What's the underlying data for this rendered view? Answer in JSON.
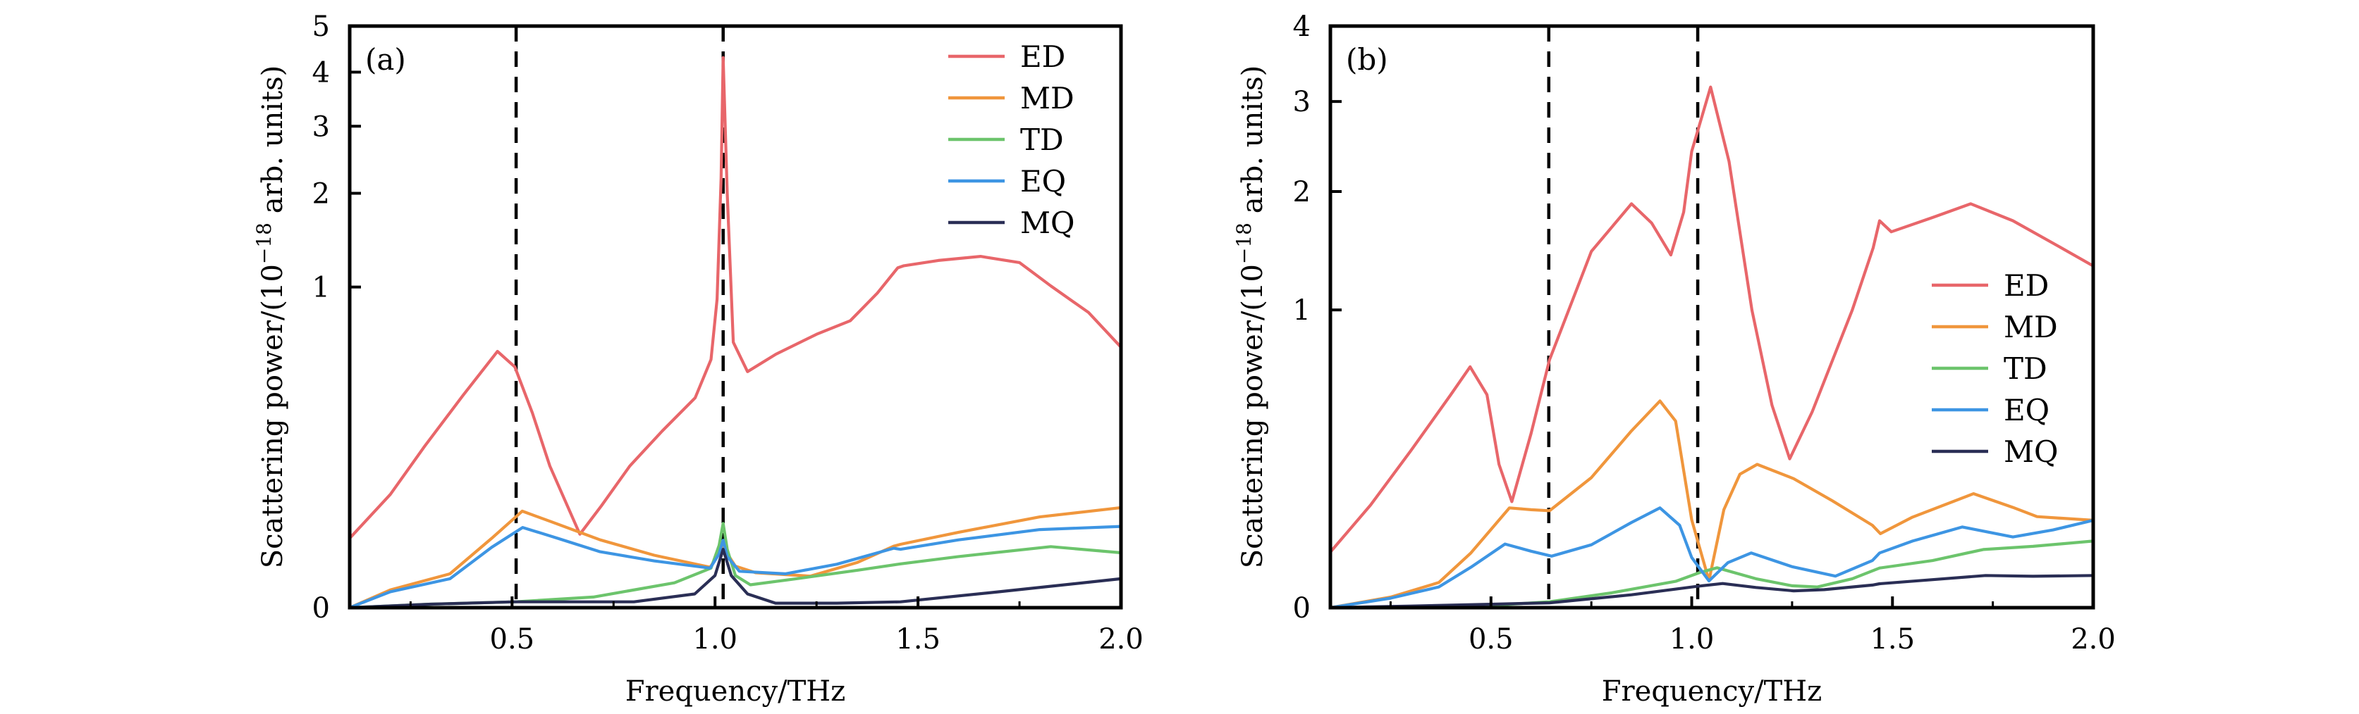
{
  "chart_data": [
    {
      "type": "line",
      "panel_label": "(a)",
      "xlabel": "Frequency/THz",
      "ylabel": "Scattering power/(10^-18 arb. units)",
      "ylabel_parts": {
        "pre": "Scattering power/(10",
        "sup": "−18",
        "post": " arb. units)"
      },
      "xlim": [
        0.1,
        2.0
      ],
      "ylim": [
        0,
        5
      ],
      "yscale": "power",
      "yscale_exponent": 0.37,
      "xticks": [
        0.5,
        1.0,
        1.5,
        2.0
      ],
      "xtick_labels": [
        "0.5",
        "1.0",
        "1.5",
        "2.0"
      ],
      "xminor_ticks": [
        0.25,
        0.75,
        1.25,
        1.75
      ],
      "yticks": [
        0,
        1,
        2,
        3,
        4,
        5
      ],
      "ytick_labels": [
        "0",
        "1",
        "2",
        "3",
        "4",
        "5"
      ],
      "vlines": [
        0.51,
        1.02
      ],
      "grid": false,
      "legend_position": "top-right",
      "series": [
        {
          "name": "ED",
          "color": "#e8666a",
          "x": [
            0.1,
            0.2,
            0.285,
            0.38,
            0.464,
            0.507,
            0.55,
            0.593,
            0.667,
            0.72,
            0.79,
            0.87,
            0.951,
            0.99,
            1.005,
            1.015,
            1.02,
            1.03,
            1.045,
            1.08,
            1.15,
            1.25,
            1.333,
            1.4,
            1.45,
            1.465,
            1.55,
            1.654,
            1.75,
            1.827,
            1.92,
            2.0
          ],
          "y": [
            0.016,
            0.06,
            0.157,
            0.33,
            0.546,
            0.461,
            0.26,
            0.11,
            0.0186,
            0.045,
            0.11,
            0.2,
            0.318,
            0.5,
            0.9,
            2.2,
            4.3,
            2.0,
            0.6,
            0.437,
            0.53,
            0.65,
            0.74,
            0.95,
            1.17,
            1.19,
            1.24,
            1.28,
            1.22,
            1.01,
            0.8,
            0.57
          ]
        },
        {
          "name": "MD",
          "color": "#f0963c",
          "x": [
            0.1,
            0.2,
            0.347,
            0.45,
            0.525,
            0.6,
            0.717,
            0.85,
            0.988,
            1.02,
            1.05,
            1.1,
            1.235,
            1.35,
            1.44,
            1.457,
            1.6,
            1.8,
            2.0
          ],
          "y": [
            0.0,
            0.0004,
            0.0023,
            0.016,
            0.039,
            0.028,
            0.015,
            0.0075,
            0.0037,
            0.011,
            0.004,
            0.0025,
            0.0019,
            0.005,
            0.0115,
            0.0125,
            0.02,
            0.033,
            0.043
          ]
        },
        {
          "name": "TD",
          "color": "#6cc46c",
          "x": [
            0.1,
            0.3,
            0.507,
            0.7,
            0.9,
            0.99,
            1.01,
            1.02,
            1.03,
            1.05,
            1.087,
            1.2,
            1.35,
            1.457,
            1.6,
            1.827,
            2.0
          ],
          "y": [
            0.0,
            5e-06,
            2e-05,
            0.0001,
            0.001,
            0.0035,
            0.012,
            0.027,
            0.01,
            0.002,
            0.0008,
            0.0015,
            0.003,
            0.0046,
            0.007,
            0.0113,
            0.0085
          ]
        },
        {
          "name": "EQ",
          "color": "#3d95e3",
          "x": [
            0.1,
            0.2,
            0.347,
            0.45,
            0.526,
            0.6,
            0.717,
            0.85,
            0.988,
            1.01,
            1.02,
            1.03,
            1.06,
            1.173,
            1.3,
            1.44,
            1.457,
            1.6,
            1.8,
            2.0
          ],
          "y": [
            0.0,
            0.0003,
            0.0015,
            0.011,
            0.0236,
            0.017,
            0.0089,
            0.0055,
            0.0035,
            0.008,
            0.0148,
            0.007,
            0.0028,
            0.0023,
            0.0045,
            0.0105,
            0.01,
            0.015,
            0.022,
            0.0245
          ]
        },
        {
          "name": "MQ",
          "color": "#2a2e55",
          "x": [
            0.1,
            0.3,
            0.507,
            0.8,
            0.95,
            1.0,
            1.02,
            1.04,
            1.08,
            1.149,
            1.3,
            1.457,
            1.7,
            2.0
          ],
          "y": [
            0.0,
            5e-06,
            2e-05,
            2e-05,
            0.0002,
            0.002,
            0.01,
            0.002,
            0.0002,
            1e-05,
            1e-05,
            2e-05,
            0.0003,
            0.0015
          ]
        }
      ]
    },
    {
      "type": "line",
      "panel_label": "(b)",
      "xlabel": "Frequency/THz",
      "ylabel": "Scattering power/(10^-18 arb. units)",
      "ylabel_parts": {
        "pre": "Scattering power/(10",
        "sup": "−18",
        "post": " arb. units)"
      },
      "xlim": [
        0.1,
        2.0
      ],
      "ylim": [
        0,
        4
      ],
      "yscale": "power",
      "yscale_exponent": 0.483,
      "xticks": [
        0.5,
        1.0,
        1.5,
        2.0
      ],
      "xtick_labels": [
        "0.5",
        "1.0",
        "1.5",
        "2.0"
      ],
      "xminor_ticks": [
        0.25,
        0.75,
        1.25,
        1.75
      ],
      "yticks": [
        0,
        1,
        2,
        3,
        4
      ],
      "ytick_labels": [
        "0",
        "1",
        "2",
        "3",
        "4"
      ],
      "vlines": [
        0.644,
        1.015
      ],
      "grid": false,
      "legend_position": "center-right",
      "series": [
        {
          "name": "ED",
          "color": "#e8666a",
          "x": [
            0.1,
            0.2,
            0.3,
            0.4,
            0.448,
            0.49,
            0.52,
            0.552,
            0.6,
            0.646,
            0.75,
            0.85,
            0.9,
            0.948,
            0.98,
            1.0,
            1.047,
            1.093,
            1.15,
            1.2,
            1.244,
            1.3,
            1.4,
            1.452,
            1.468,
            1.497,
            1.6,
            1.695,
            1.8,
            1.9,
            2.0
          ],
          "y": [
            0.031,
            0.11,
            0.265,
            0.5,
            0.645,
            0.5,
            0.22,
            0.118,
            0.33,
            0.685,
            1.45,
            1.88,
            1.7,
            1.42,
            1.8,
            2.42,
            3.18,
            2.31,
            1.0,
            0.45,
            0.238,
            0.42,
            1.0,
            1.48,
            1.72,
            1.62,
            1.75,
            1.88,
            1.72,
            1.52,
            1.33
          ]
        },
        {
          "name": "MD",
          "color": "#f0963c",
          "x": [
            0.1,
            0.25,
            0.37,
            0.45,
            0.546,
            0.6,
            0.646,
            0.75,
            0.85,
            0.921,
            0.96,
            1.0,
            1.043,
            1.08,
            1.12,
            1.163,
            1.254,
            1.35,
            1.45,
            1.47,
            1.55,
            1.702,
            1.8,
            1.86,
            2.0
          ],
          "y": [
            0.0,
            0.001,
            0.006,
            0.03,
            0.104,
            0.1,
            0.098,
            0.18,
            0.34,
            0.47,
            0.38,
            0.08,
            0.007,
            0.1,
            0.19,
            0.22,
            0.177,
            0.12,
            0.07,
            0.056,
            0.085,
            0.137,
            0.105,
            0.086,
            0.079
          ]
        },
        {
          "name": "TD",
          "color": "#6cc46c",
          "x": [
            0.1,
            0.3,
            0.51,
            0.646,
            0.8,
            0.96,
            1.02,
            1.063,
            1.16,
            1.25,
            1.313,
            1.4,
            1.468,
            1.6,
            1.726,
            1.85,
            2.0
          ],
          "y": [
            0.0,
            0.0,
            5e-05,
            0.0003,
            0.002,
            0.0066,
            0.012,
            0.0156,
            0.008,
            0.0045,
            0.004,
            0.008,
            0.0154,
            0.022,
            0.034,
            0.038,
            0.045
          ]
        },
        {
          "name": "EQ",
          "color": "#3d95e3",
          "x": [
            0.1,
            0.25,
            0.37,
            0.45,
            0.535,
            0.6,
            0.651,
            0.75,
            0.85,
            0.921,
            0.97,
            1.0,
            1.043,
            1.09,
            1.148,
            1.25,
            1.358,
            1.45,
            1.468,
            1.55,
            1.674,
            1.8,
            1.9,
            2.0
          ],
          "y": [
            0.0,
            0.0008,
            0.004,
            0.016,
            0.041,
            0.032,
            0.0265,
            0.04,
            0.075,
            0.104,
            0.07,
            0.025,
            0.0068,
            0.02,
            0.03,
            0.0165,
            0.0096,
            0.022,
            0.03,
            0.045,
            0.067,
            0.051,
            0.062,
            0.079
          ]
        },
        {
          "name": "MQ",
          "color": "#2a2e55",
          "x": [
            0.1,
            0.3,
            0.5,
            0.646,
            0.85,
            1.01,
            1.077,
            1.16,
            1.254,
            1.33,
            1.45,
            1.468,
            1.6,
            1.732,
            1.85,
            2.0
          ],
          "y": [
            0.0,
            2e-05,
            0.0001,
            0.0002,
            0.0015,
            0.0042,
            0.0055,
            0.0038,
            0.0026,
            0.003,
            0.0048,
            0.0054,
            0.0075,
            0.01,
            0.0095,
            0.01
          ]
        }
      ]
    }
  ]
}
